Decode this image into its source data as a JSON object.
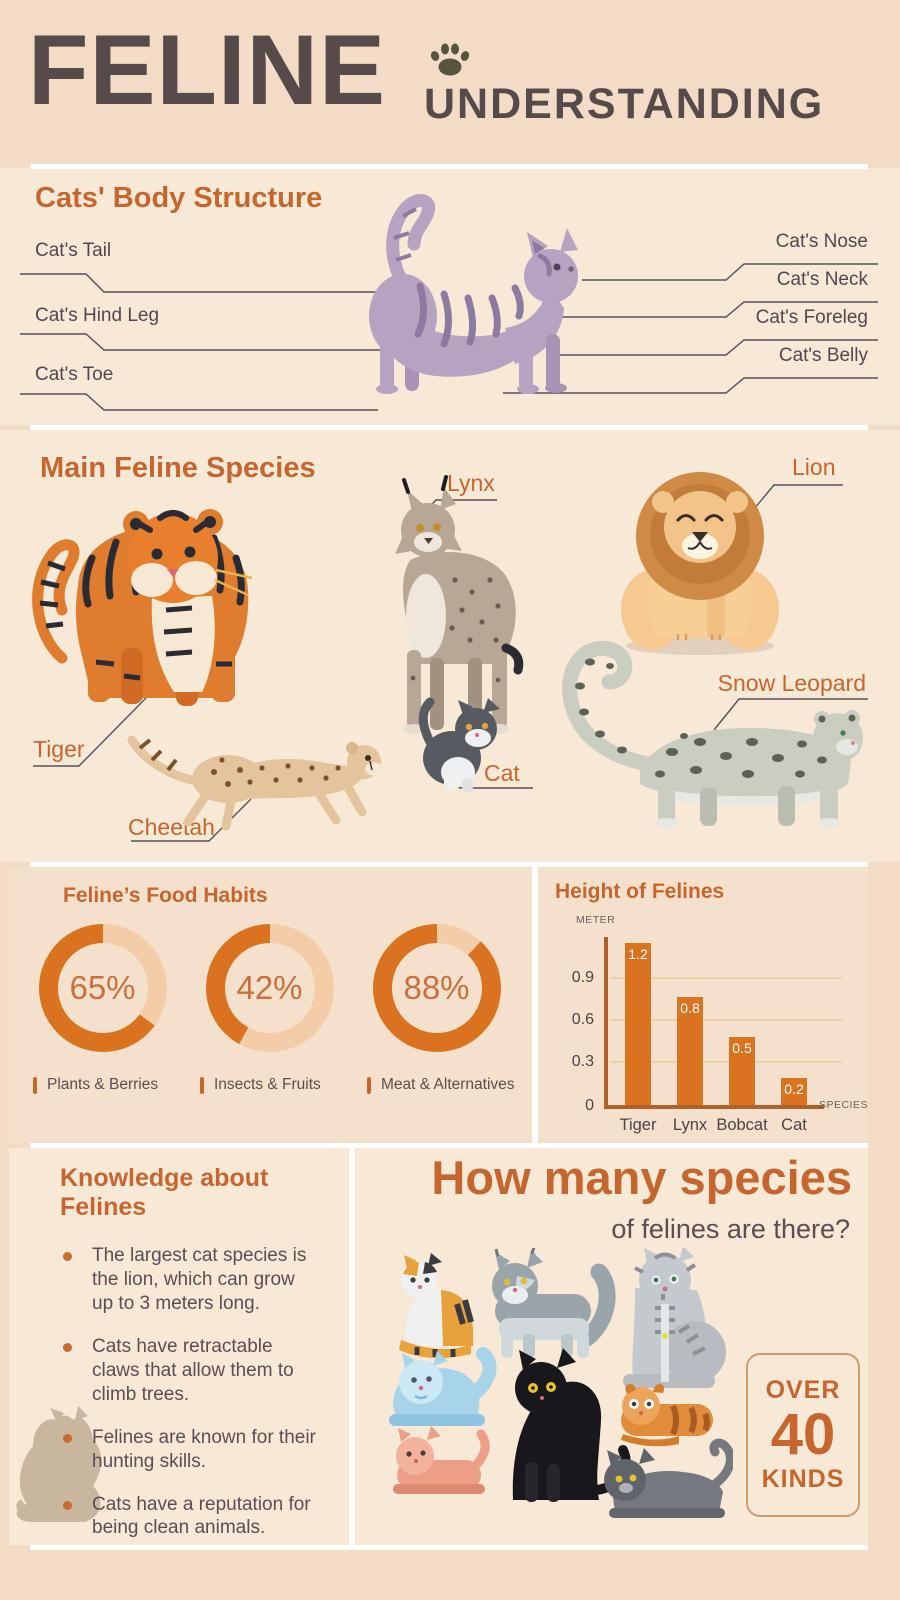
{
  "header": {
    "title": "FELINE",
    "subtitle": "UNDERSTANDING",
    "icon": "paw-icon"
  },
  "body_structure": {
    "title": "Cats' Body Structure",
    "left_labels": [
      "Cat's Tail",
      "Cat's Hind Leg",
      "Cat's Toe"
    ],
    "right_labels": [
      "Cat's Nose",
      "Cat's Neck",
      "Cat's Foreleg",
      "Cat's Belly"
    ]
  },
  "species": {
    "title": "Main Feline Species",
    "labels": {
      "tiger": "Tiger",
      "lynx": "Lynx",
      "lion": "Lion",
      "cheetah": "Cheetah",
      "cat": "Cat",
      "snow_leopard": "Snow Leopard"
    }
  },
  "chart_data": [
    {
      "type": "donut",
      "title": "Feline’s Food Habits",
      "legend_position": "bottom",
      "items": [
        {
          "label": "Plants & Berries",
          "percent": 65,
          "percent_label": "65%"
        },
        {
          "label": "Insects & Fruits",
          "percent": 42,
          "percent_label": "42%"
        },
        {
          "label": "Meat & Alternatives",
          "percent": 88,
          "percent_label": "88%"
        }
      ],
      "colors": {
        "filled": "#d9731f",
        "rest": "#f3cda7"
      }
    },
    {
      "type": "bar",
      "title": "Height of Felines",
      "ylabel": "METER",
      "xlabel": "SPECIES",
      "categories": [
        "Tiger",
        "Lynx",
        "Bobcat",
        "Cat"
      ],
      "values": [
        1.2,
        0.8,
        0.5,
        0.2
      ],
      "yticks": [
        "0",
        "0.3",
        "0.6",
        "0.9"
      ],
      "ylim": [
        0,
        1.3
      ],
      "grid": true,
      "bar_color": "#d9731f"
    }
  ],
  "knowledge": {
    "title": "Knowledge about Felines",
    "bullets": [
      "The largest cat species is the lion, which can grow up to 3 meters long.",
      "Cats have retractable claws that allow them to climb trees.",
      "Felines are known for their hunting skills.",
      "Cats have a reputation for being clean animals."
    ]
  },
  "species_count": {
    "heading": "How many species",
    "subheading": "of felines are there?",
    "badge": {
      "top": "OVER",
      "number": "40",
      "bottom": "KINDS"
    }
  },
  "colors": {
    "accent": "#c6662e",
    "page_bg": "#f3dcc6",
    "panel_light": "#f8e9d7",
    "panel_mid": "#f5e1cb",
    "heading_dark": "#574a4a",
    "text_dark": "#5a4e53"
  }
}
